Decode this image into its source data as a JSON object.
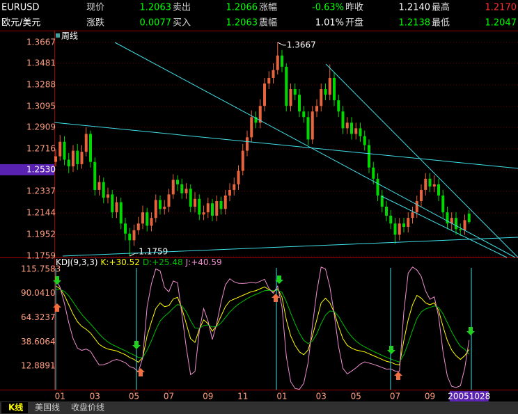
{
  "header": {
    "rows": [
      [
        "EURUSD",
        "现价",
        "1.2063",
        "卖出",
        "1.2066",
        "涨幅",
        "-0.63%",
        "昨收",
        "1.2140",
        "最高",
        "1.2170"
      ],
      [
        "欧元/美元",
        "涨跌",
        "0.0077",
        "买入",
        "1.2063",
        "震幅",
        "1.01%",
        "开盘",
        "1.2138",
        "最低",
        "1.2047"
      ]
    ],
    "value_colors": [
      [
        "#00ff00",
        "#00ff00",
        "#00ff00",
        "#ffffff",
        "#ff3030"
      ],
      [
        "#00ff00",
        "#00ff00",
        "#ffffff",
        "#00ff00",
        "#00ff00"
      ]
    ]
  },
  "tabs": [
    "K线",
    "美国线",
    "收盘价线"
  ],
  "chart_data": [
    {
      "type": "candlestick",
      "title": "周线",
      "categories": [
        null,
        "01",
        null,
        null,
        null,
        null,
        null,
        null,
        null,
        "03",
        null,
        null,
        null,
        null,
        null,
        null,
        null,
        null,
        "05",
        null,
        null,
        null,
        null,
        null,
        null,
        null,
        "07",
        null,
        null,
        null,
        null,
        null,
        null,
        null,
        null,
        "09",
        null,
        null,
        null,
        null,
        null,
        null,
        null,
        "11",
        null,
        null,
        null,
        null,
        null,
        null,
        null,
        null,
        "01",
        null,
        null,
        null,
        null,
        null,
        null,
        null,
        null,
        "03",
        null,
        null,
        null,
        null,
        null,
        null,
        null,
        "05",
        null,
        null,
        null,
        null,
        null,
        null,
        null,
        null,
        "07",
        null,
        null,
        null,
        null,
        null,
        null,
        null,
        "09",
        null,
        null,
        null,
        null,
        null,
        null,
        null,
        null,
        "20051028"
      ],
      "open": [
        1.26,
        1.265,
        1.278,
        1.262,
        1.256,
        1.27,
        1.258,
        1.269,
        1.285,
        1.26,
        1.235,
        1.242,
        1.228,
        1.231,
        1.215,
        1.224,
        1.205,
        1.196,
        1.19,
        1.199,
        1.205,
        1.215,
        1.203,
        1.21,
        1.226,
        1.218,
        1.22,
        1.231,
        1.244,
        1.24,
        1.232,
        1.236,
        1.22,
        1.227,
        1.213,
        1.215,
        1.223,
        1.212,
        1.225,
        1.218,
        1.23,
        1.235,
        1.24,
        1.252,
        1.27,
        1.282,
        1.3,
        1.295,
        1.31,
        1.33,
        1.335,
        1.342,
        1.355,
        1.345,
        1.31,
        1.325,
        1.32,
        1.305,
        1.3,
        1.28,
        1.305,
        1.31,
        1.325,
        1.32,
        1.335,
        1.315,
        1.305,
        1.29,
        1.295,
        1.285,
        1.29,
        1.283,
        1.275,
        1.255,
        1.245,
        1.23,
        1.22,
        1.212,
        1.205,
        1.195,
        1.205,
        1.202,
        1.21,
        1.215,
        1.225,
        1.235,
        1.245,
        1.238,
        1.24,
        1.23,
        1.215,
        1.205,
        1.21,
        1.2,
        1.199,
        1.2138
      ],
      "high": [
        1.271,
        1.284,
        1.283,
        1.268,
        1.275,
        1.276,
        1.275,
        1.2909,
        1.288,
        1.264,
        1.248,
        1.246,
        1.237,
        1.235,
        1.229,
        1.228,
        1.21,
        1.201,
        1.204,
        1.211,
        1.221,
        1.219,
        1.215,
        1.231,
        1.23,
        1.226,
        1.236,
        1.249,
        1.248,
        1.245,
        1.241,
        1.24,
        1.233,
        1.231,
        1.221,
        1.228,
        1.227,
        1.23,
        1.229,
        1.235,
        1.241,
        1.246,
        1.257,
        1.276,
        1.288,
        1.306,
        1.305,
        1.316,
        1.335,
        1.341,
        1.348,
        1.3667,
        1.36,
        1.348,
        1.33,
        1.33,
        1.325,
        1.31,
        1.305,
        1.31,
        1.316,
        1.33,
        1.33,
        1.347,
        1.34,
        1.32,
        1.31,
        1.3,
        1.3,
        1.295,
        1.295,
        1.288,
        1.28,
        1.26,
        1.25,
        1.235,
        1.225,
        1.217,
        1.21,
        1.21,
        1.21,
        1.215,
        1.22,
        1.23,
        1.24,
        1.25,
        1.25,
        1.248,
        1.245,
        1.235,
        1.22,
        1.215,
        1.215,
        1.205,
        1.213,
        1.217
      ],
      "low": [
        1.256,
        1.261,
        1.257,
        1.25,
        1.251,
        1.253,
        1.254,
        1.265,
        1.255,
        1.23,
        1.23,
        1.223,
        1.223,
        1.21,
        1.21,
        1.2,
        1.19,
        1.1759,
        1.185,
        1.195,
        1.2,
        1.198,
        1.198,
        1.206,
        1.213,
        1.213,
        1.215,
        1.227,
        1.234,
        1.227,
        1.227,
        1.215,
        1.215,
        1.208,
        1.208,
        1.21,
        1.207,
        1.207,
        1.213,
        1.213,
        1.225,
        1.23,
        1.235,
        1.248,
        1.265,
        1.278,
        1.29,
        1.29,
        1.305,
        1.325,
        1.33,
        1.338,
        1.34,
        1.305,
        1.305,
        1.315,
        1.3,
        1.295,
        1.275,
        1.276,
        1.3,
        1.305,
        1.315,
        1.315,
        1.31,
        1.3,
        1.285,
        1.285,
        1.28,
        1.28,
        1.278,
        1.27,
        1.25,
        1.24,
        1.225,
        1.215,
        1.207,
        1.2,
        1.187,
        1.19,
        1.197,
        1.197,
        1.205,
        1.21,
        1.22,
        1.23,
        1.233,
        1.233,
        1.225,
        1.21,
        1.2,
        1.199,
        1.195,
        1.194,
        1.195,
        1.2047
      ],
      "close": [
        1.265,
        1.278,
        1.262,
        1.256,
        1.27,
        1.258,
        1.269,
        1.285,
        1.26,
        1.235,
        1.242,
        1.228,
        1.231,
        1.215,
        1.224,
        1.205,
        1.196,
        1.19,
        1.199,
        1.205,
        1.215,
        1.203,
        1.21,
        1.226,
        1.218,
        1.22,
        1.231,
        1.244,
        1.24,
        1.232,
        1.236,
        1.22,
        1.227,
        1.213,
        1.215,
        1.223,
        1.212,
        1.225,
        1.218,
        1.23,
        1.235,
        1.24,
        1.252,
        1.27,
        1.282,
        1.3,
        1.295,
        1.31,
        1.33,
        1.335,
        1.342,
        1.355,
        1.345,
        1.31,
        1.325,
        1.32,
        1.305,
        1.3,
        1.28,
        1.305,
        1.31,
        1.325,
        1.32,
        1.335,
        1.315,
        1.305,
        1.29,
        1.295,
        1.285,
        1.29,
        1.283,
        1.275,
        1.255,
        1.245,
        1.23,
        1.22,
        1.212,
        1.205,
        1.195,
        1.205,
        1.202,
        1.21,
        1.215,
        1.225,
        1.235,
        1.245,
        1.238,
        1.24,
        1.23,
        1.215,
        1.205,
        1.21,
        1.2,
        1.199,
        1.208,
        1.2063
      ],
      "up_color": "#e8643c",
      "down_color": "#00d800",
      "ylim": [
        1.1747,
        1.3766
      ],
      "yticks": [
        1.3667,
        1.3481,
        1.3288,
        1.3095,
        1.2909,
        1.2716,
        {
          "value": 1.253,
          "label": "1.2530"
        },
        1.2337,
        1.2144,
        1.1952,
        1.1759
      ],
      "highlight_ytick": 6,
      "highlight_category": 95,
      "grid": true
    },
    {
      "type": "line",
      "title": "KDJ(9,3,3)",
      "series": [
        {
          "name": "K:",
          "color": "#ffff00",
          "value_label": "+30.52",
          "values": [
            98,
            95,
            88,
            78,
            68,
            60,
            55,
            52,
            48,
            42,
            36,
            33,
            31,
            30,
            29,
            27,
            25,
            22,
            20,
            17,
            22,
            45,
            60,
            74,
            80,
            76,
            77,
            84,
            86,
            74,
            58,
            42,
            38,
            52,
            62,
            58,
            50,
            56,
            66,
            76,
            82,
            84,
            86,
            88,
            90,
            92,
            93,
            95,
            97,
            94,
            92,
            95,
            86,
            62,
            45,
            35,
            28,
            25,
            30,
            45,
            62,
            80,
            85,
            80,
            70,
            55,
            42,
            35,
            32,
            30,
            29,
            28,
            26,
            24,
            22,
            20,
            18,
            17,
            15,
            14,
            40,
            62,
            78,
            88,
            85,
            80,
            78,
            80,
            72,
            55,
            40,
            30,
            24,
            20,
            24,
            30.52
          ]
        },
        {
          "name": "D:",
          "color": "#00c000",
          "value_label": "+25.48",
          "values": [
            94,
            94.3,
            92.2,
            87.5,
            81,
            74,
            67.7,
            62.5,
            57.7,
            52.5,
            47,
            42.3,
            38.5,
            35.7,
            33.5,
            31.3,
            29.2,
            26.8,
            24.6,
            22.1,
            22.1,
            29.7,
            39.8,
            51.2,
            60.8,
            65.8,
            69.6,
            74.4,
            78.3,
            76.9,
            70.6,
            61.1,
            53.4,
            52.9,
            56,
            56.6,
            54.4,
            55,
            58.7,
            64.4,
            70.2,
            74.8,
            78.6,
            81.7,
            84.5,
            87,
            89,
            91,
            93,
            93.3,
            92.9,
            93.6,
            91.1,
            81.4,
            69.3,
            57.9,
            47.9,
            40.2,
            36.8,
            39.5,
            47,
            58,
            67,
            71.4,
            70.9,
            65.6,
            57.7,
            50.2,
            44.2,
            39.5,
            36,
            33.3,
            30.9,
            28.6,
            26.4,
            24.3,
            22.2,
            20.5,
            18.7,
            17.2,
            24.8,
            37.2,
            50.8,
            63.2,
            70.4,
            73.6,
            75.1,
            76.8,
            75.2,
            68.4,
            58.9,
            49.3,
            40.9,
            34,
            30.7,
            25.48
          ]
        },
        {
          "name": "J:",
          "color": "#f090d0",
          "value_label": "+40.59",
          "values": [
            106,
            96.4,
            79.6,
            59,
            42,
            32,
            29.6,
            31,
            28.6,
            21,
            14,
            14.4,
            16,
            18.6,
            20,
            18.4,
            16.6,
            12.4,
            10.8,
            6.8,
            21.8,
            75.6,
            100.4,
            116,
            114,
            96.4,
            91.8,
            103.2,
            101.4,
            68.2,
            32.8,
            3.8,
            7.2,
            50.2,
            74,
            60.8,
            41.2,
            58,
            80.6,
            99.2,
            105.6,
            102.4,
            100.8,
            100.6,
            101,
            102,
            101,
            103,
            105,
            95.4,
            90.2,
            97.8,
            75.8,
            23.2,
            -3.6,
            -10.8,
            -11.8,
            -5.4,
            16.4,
            56,
            92,
            118,
            116,
            97.2,
            68.2,
            33.8,
            10.6,
            4.6,
            7.6,
            11,
            15,
            17.4,
            16.2,
            14.8,
            13.2,
            11.4,
            9.6,
            10,
            7.6,
            7.6,
            70.4,
            111.6,
            118,
            115,
            108,
            92.8,
            83.8,
            86.4,
            65.6,
            28.2,
            2.2,
            -8.6,
            -9.8,
            -8,
            10.6,
            40.59
          ]
        }
      ],
      "ylim": [
        -12.1,
        127.5
      ],
      "yticks": [
        115.7583,
        {
          "value": 90.041,
          "label": "90.0410"
        },
        64.3237,
        38.6064,
        12.8891
      ]
    }
  ]
}
